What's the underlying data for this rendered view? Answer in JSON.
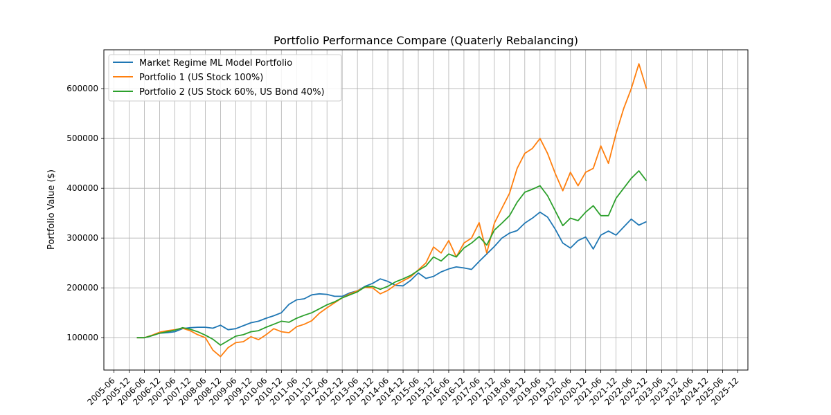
{
  "chart_data": {
    "type": "line",
    "title": "Portfolio Performance Compare (Quaterly Rebalancing)",
    "xlabel": "",
    "ylabel": "Portfolio Value ($)",
    "ylim": [
      35000,
      678000
    ],
    "yticks": [
      100000,
      200000,
      300000,
      400000,
      500000,
      600000
    ],
    "xticks": [
      "2005-06",
      "2005-12",
      "2006-06",
      "2006-12",
      "2007-06",
      "2007-12",
      "2008-06",
      "2008-12",
      "2009-06",
      "2009-12",
      "2010-06",
      "2010-12",
      "2011-06",
      "2011-12",
      "2012-06",
      "2012-12",
      "2013-06",
      "2013-12",
      "2014-06",
      "2014-12",
      "2015-06",
      "2015-12",
      "2016-06",
      "2016-12",
      "2017-06",
      "2017-12",
      "2018-06",
      "2018-12",
      "2019-06",
      "2019-12",
      "2020-06",
      "2020-12",
      "2021-06",
      "2021-12",
      "2022-06",
      "2022-12",
      "2023-06",
      "2023-12",
      "2024-06",
      "2024-12",
      "2025-06",
      "2025-12"
    ],
    "x_period": "quarterly",
    "x_start": "2006-03",
    "grid": true,
    "legend_position": "top-left",
    "series": [
      {
        "name": "Market Regime ML Model Portfolio",
        "color": "#1f77b4",
        "values": [
          100000,
          100000,
          104000,
          109000,
          110000,
          112000,
          118000,
          120000,
          121000,
          121000,
          119000,
          125000,
          116000,
          118000,
          124000,
          130000,
          133000,
          139000,
          144000,
          150000,
          167000,
          176000,
          178000,
          186000,
          188000,
          187000,
          183000,
          183000,
          190000,
          194000,
          203000,
          209000,
          218000,
          213000,
          205000,
          204000,
          215000,
          230000,
          219000,
          223000,
          232000,
          238000,
          242000,
          240000,
          237000,
          253000,
          268000,
          283000,
          300000,
          310000,
          315000,
          330000,
          340000,
          352000,
          342000,
          318000,
          290000,
          280000,
          295000,
          302000,
          278000,
          306000,
          314000,
          306000,
          322000,
          338000,
          326000,
          333000
        ]
      },
      {
        "name": "Portfolio 1 (US Stock 100%)",
        "color": "#ff7f0e",
        "values": [
          100000,
          100000,
          105000,
          111000,
          114000,
          116000,
          119000,
          114000,
          106000,
          100000,
          75000,
          62000,
          80000,
          90000,
          92000,
          102000,
          96000,
          106000,
          118000,
          112000,
          110000,
          122000,
          127000,
          134000,
          149000,
          160000,
          170000,
          180000,
          188000,
          194000,
          201000,
          200000,
          188000,
          195000,
          206000,
          214000,
          222000,
          236000,
          250000,
          282000,
          270000,
          295000,
          262000,
          290000,
          300000,
          331000,
          270000,
          330000,
          360000,
          390000,
          440000,
          470000,
          480000,
          500000,
          470000,
          430000,
          395000,
          432000,
          405000,
          432000,
          440000,
          485000,
          450000,
          510000,
          560000,
          600000,
          650000,
          600000
        ]
      },
      {
        "name": "Portfolio 2 (US Stock 60%, US Bond 40%)",
        "color": "#2ca02c",
        "values": [
          100000,
          100000,
          104000,
          109000,
          112000,
          115000,
          120000,
          117000,
          112000,
          105000,
          97000,
          85000,
          94000,
          103000,
          106000,
          112000,
          114000,
          121000,
          127000,
          133000,
          131000,
          139000,
          145000,
          150000,
          158000,
          166000,
          172000,
          180000,
          186000,
          192000,
          202000,
          203000,
          197000,
          203000,
          212000,
          218000,
          225000,
          235000,
          244000,
          262000,
          254000,
          268000,
          262000,
          280000,
          290000,
          303000,
          286000,
          316000,
          330000,
          345000,
          372000,
          392000,
          398000,
          405000,
          385000,
          355000,
          325000,
          340000,
          335000,
          352000,
          365000,
          345000,
          345000,
          380000,
          400000,
          420000,
          435000,
          415000
        ]
      }
    ]
  }
}
